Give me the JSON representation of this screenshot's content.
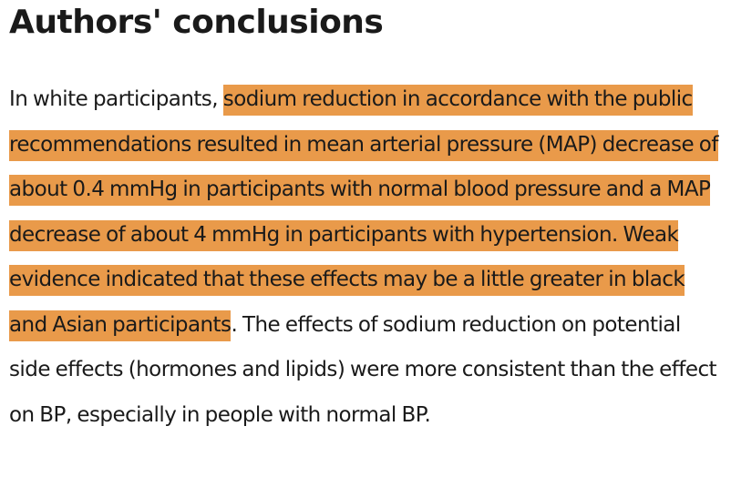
{
  "section": {
    "title": "Authors' conclusions"
  },
  "paragraph": {
    "lead": "In white participants, ",
    "highlighted": "sodium reduction in accordance with the public recommendations resulted in mean arterial pressure (MAP) decrease of about 0.4 mmHg in participants with normal blood pressure and a MAP decrease of about 4 mmHg in participants with hypertension. Weak evidence indicated that these effects may be a little greater in black and Asian participants",
    "trail": ". The effects of sodium reduction on potential side effects (hormones and lipids) were more consistent than the effect on BP, especially in people with normal BP."
  },
  "colors": {
    "highlight": "#e99a4a",
    "text": "#1a1a1a",
    "background": "#ffffff"
  }
}
